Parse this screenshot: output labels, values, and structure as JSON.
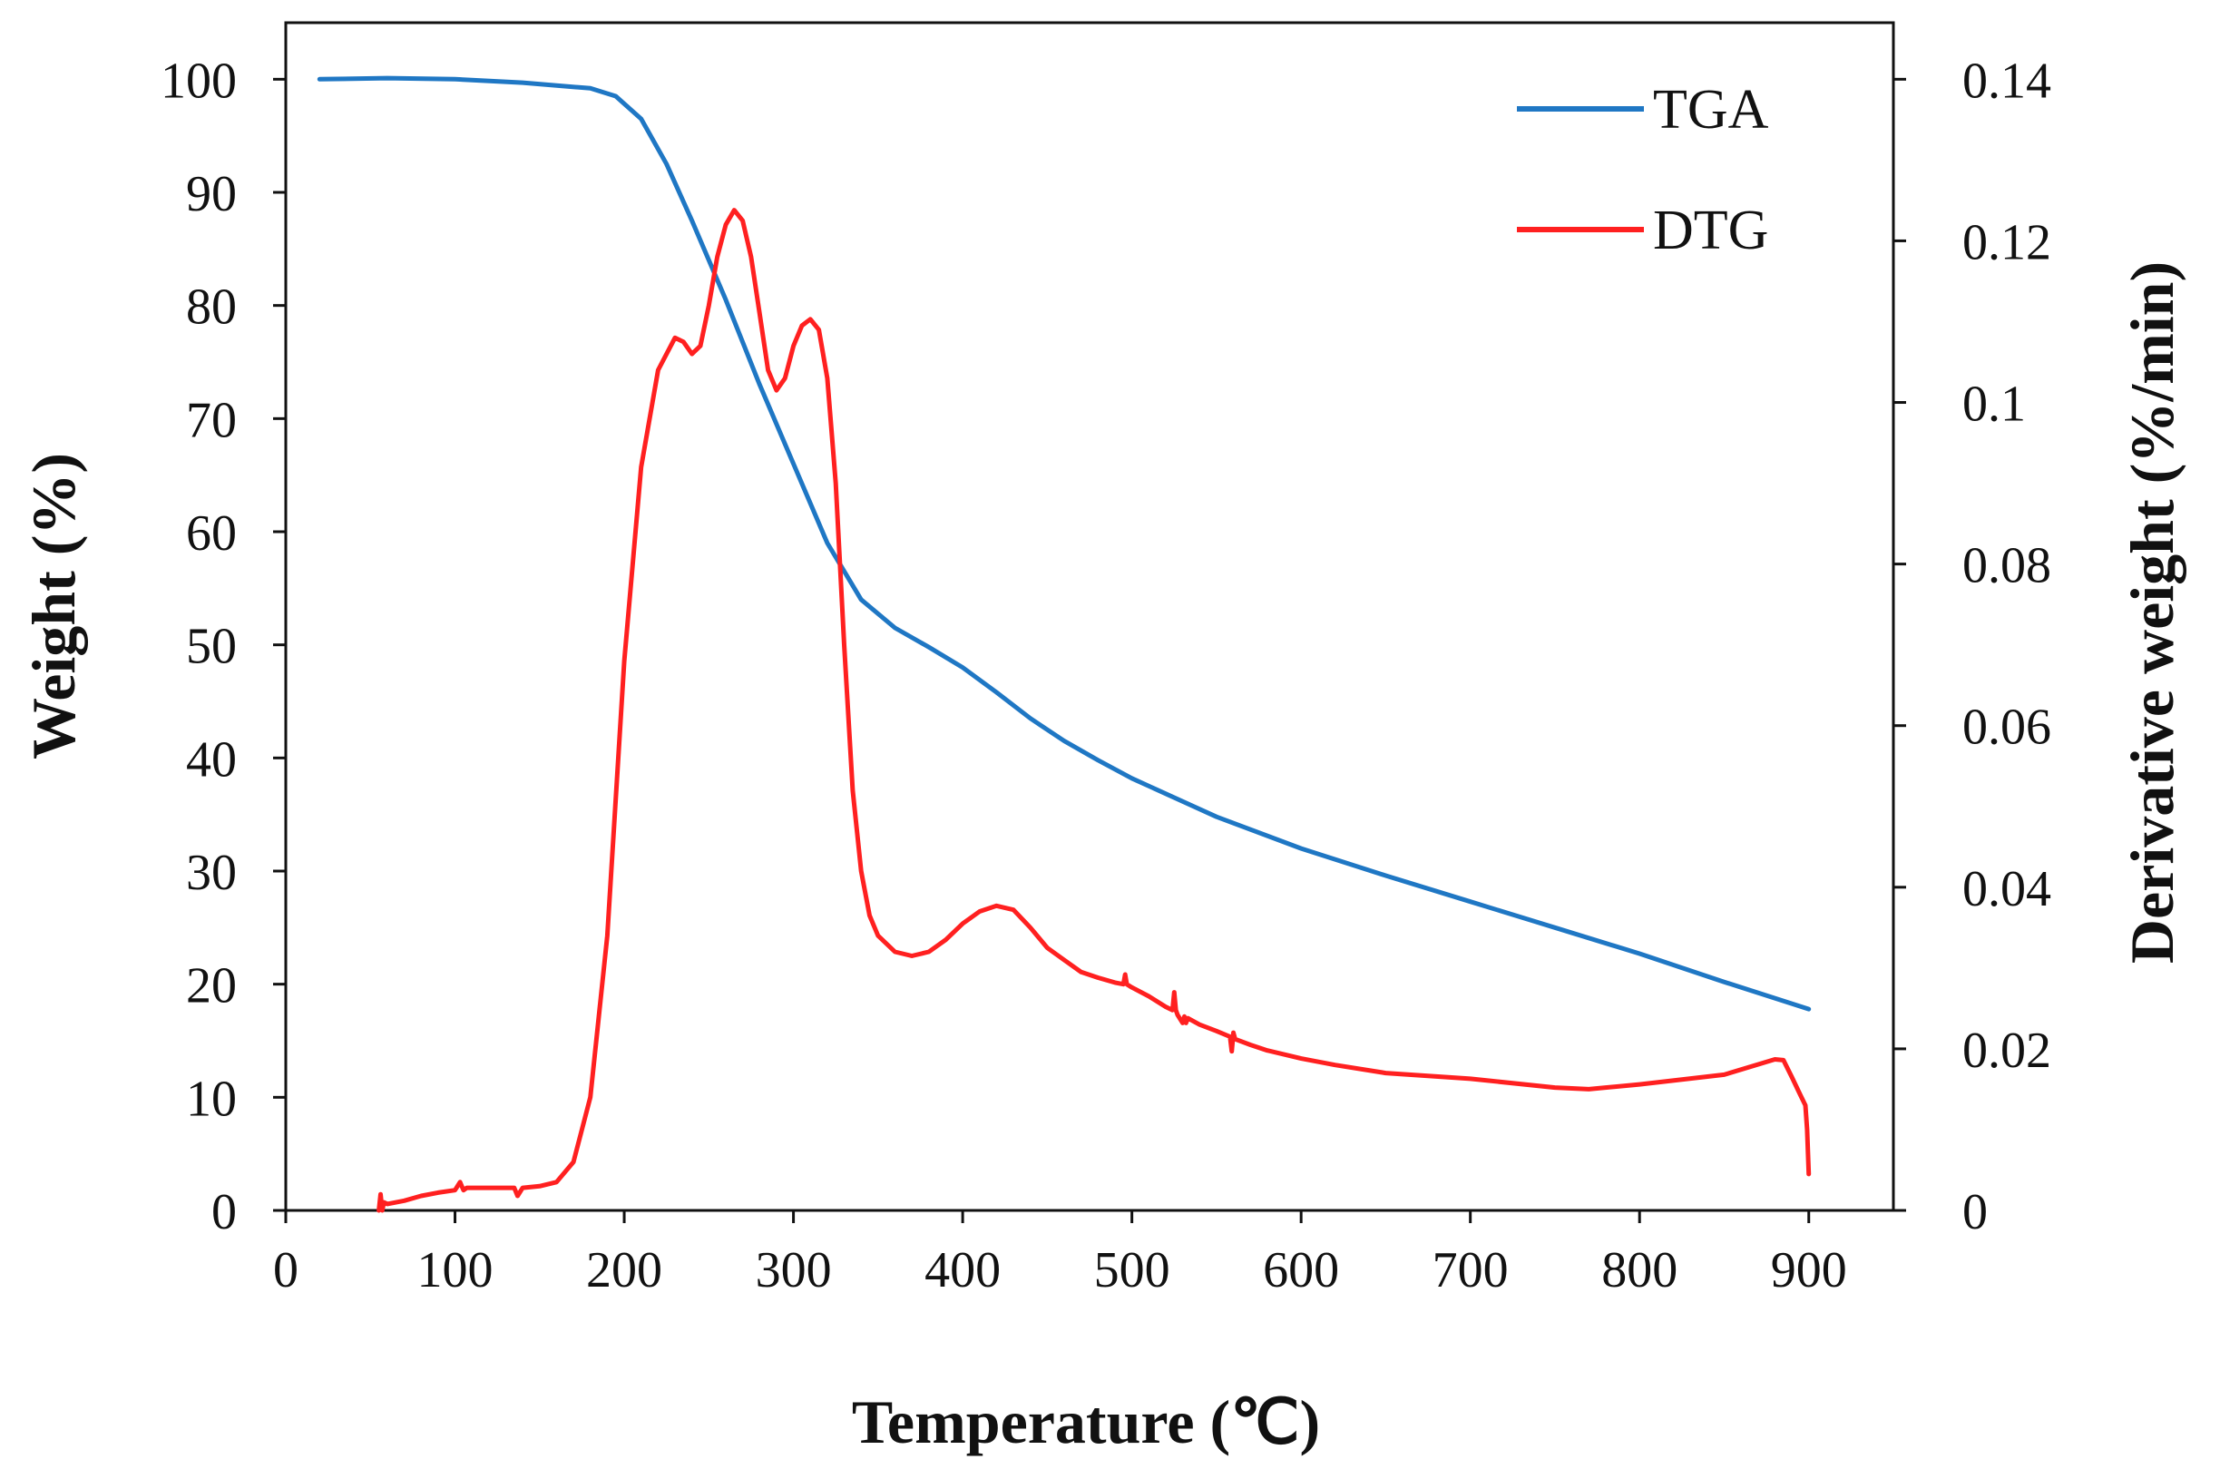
{
  "chart_data": {
    "type": "line",
    "xlabel": "Temperature (℃)",
    "ylabel_left": "Weight (%)",
    "ylabel_right": "Derivative weight (%/min)",
    "xlim": [
      0,
      950
    ],
    "ylim_left": [
      0,
      105
    ],
    "ylim_right": [
      0,
      0.147
    ],
    "x_ticks": [
      0,
      100,
      200,
      300,
      400,
      500,
      600,
      700,
      800,
      900
    ],
    "x_tick_labels": [
      "0",
      "100",
      "200",
      "300",
      "400",
      "500",
      "600",
      "700",
      "800",
      "900"
    ],
    "y_left_ticks": [
      0,
      10,
      20,
      30,
      40,
      50,
      60,
      70,
      80,
      90,
      100
    ],
    "y_left_tick_labels": [
      "0",
      "10",
      "20",
      "30",
      "40",
      "50",
      "60",
      "70",
      "80",
      "90",
      "100"
    ],
    "y_right_ticks": [
      0,
      0.02,
      0.04,
      0.06,
      0.08,
      0.1,
      0.12,
      0.14
    ],
    "y_right_tick_labels": [
      "0",
      "0.02",
      "0.04",
      "0.06",
      "0.08",
      "0.1",
      "0.12",
      "0.14"
    ],
    "grid": false,
    "legend_position": "top-right",
    "series": [
      {
        "name": "TGA",
        "axis": "left",
        "color": "#1f77c4",
        "x": [
          20,
          60,
          100,
          140,
          180,
          195,
          210,
          225,
          240,
          260,
          280,
          300,
          320,
          340,
          360,
          380,
          400,
          420,
          440,
          460,
          480,
          500,
          550,
          600,
          650,
          700,
          750,
          800,
          850,
          900
        ],
        "y": [
          100,
          100.1,
          100,
          99.7,
          99.2,
          98.5,
          96.5,
          92.5,
          87.5,
          80.5,
          73,
          66,
          59,
          54,
          51.5,
          49.8,
          48,
          45.8,
          43.5,
          41.5,
          39.8,
          38.2,
          34.8,
          32,
          29.6,
          27.3,
          25,
          22.7,
          20.2,
          17.8
        ]
      },
      {
        "name": "DTG",
        "axis": "right",
        "color": "#ff2020",
        "x": [
          55,
          56,
          57,
          58,
          60,
          70,
          80,
          90,
          100,
          103,
          105,
          107,
          110,
          120,
          130,
          135,
          137,
          140,
          150,
          160,
          170,
          180,
          190,
          200,
          210,
          220,
          230,
          235,
          240,
          245,
          250,
          255,
          260,
          265,
          270,
          275,
          280,
          285,
          290,
          295,
          300,
          305,
          310,
          315,
          320,
          325,
          330,
          335,
          340,
          345,
          350,
          360,
          370,
          380,
          390,
          400,
          410,
          420,
          430,
          440,
          450,
          460,
          470,
          480,
          490,
          495,
          496,
          497,
          500,
          510,
          520,
          524,
          525,
          526,
          527,
          530,
          531,
          532,
          533,
          540,
          550,
          558,
          559,
          560,
          561,
          570,
          580,
          600,
          620,
          650,
          700,
          750,
          770,
          800,
          850,
          880,
          885,
          890,
          895,
          898,
          899,
          900
        ],
        "y": [
          0,
          0.002,
          0,
          0.001,
          0.0008,
          0.0012,
          0.0018,
          0.0022,
          0.0025,
          0.0035,
          0.0025,
          0.0028,
          0.0028,
          0.0028,
          0.0028,
          0.0028,
          0.0018,
          0.0028,
          0.003,
          0.0035,
          0.006,
          0.014,
          0.034,
          0.068,
          0.092,
          0.104,
          0.108,
          0.1075,
          0.106,
          0.107,
          0.112,
          0.118,
          0.122,
          0.1238,
          0.1225,
          0.118,
          0.111,
          0.104,
          0.1015,
          0.103,
          0.107,
          0.1095,
          0.1103,
          0.109,
          0.103,
          0.09,
          0.07,
          0.052,
          0.042,
          0.0365,
          0.034,
          0.032,
          0.0315,
          0.032,
          0.0335,
          0.0355,
          0.037,
          0.0377,
          0.0372,
          0.035,
          0.0325,
          0.031,
          0.0295,
          0.0288,
          0.0282,
          0.028,
          0.0292,
          0.028,
          0.0276,
          0.0265,
          0.0252,
          0.0248,
          0.027,
          0.0248,
          0.0242,
          0.0232,
          0.024,
          0.0232,
          0.0238,
          0.023,
          0.0222,
          0.0215,
          0.0197,
          0.022,
          0.0212,
          0.0205,
          0.0198,
          0.0188,
          0.018,
          0.017,
          0.0163,
          0.0152,
          0.015,
          0.0156,
          0.0168,
          0.0187,
          0.0186,
          0.0165,
          0.0143,
          0.013,
          0.01,
          0.0045
        ]
      }
    ]
  }
}
